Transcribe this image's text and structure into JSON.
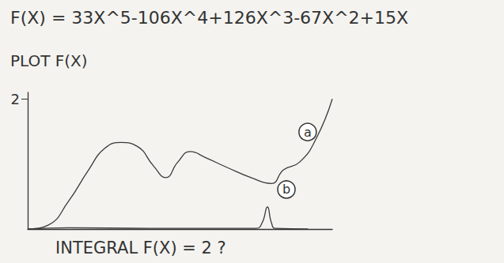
{
  "chart_data": {
    "type": "line",
    "title": "F(X) = 33X^5-106X^4+126X^3-67X^2+15X",
    "subtitle": "PLOT F(X)",
    "annotations": [
      "INTEGRAL F(X) = 2 ?"
    ],
    "xlim": [
      0,
      1
    ],
    "xticks": [],
    "ylim": [
      0,
      2.1
    ],
    "yticks": [
      2
    ],
    "tick_labels": "y",
    "grid": false,
    "series": [
      {
        "name": "a",
        "color": "#3a3a3a",
        "x": [
          0,
          0.067,
          0.133,
          0.2,
          0.253,
          0.307,
          0.36,
          0.413,
          0.453,
          0.493,
          0.533,
          0.587,
          0.653,
          0.733,
          0.8,
          0.84,
          0.893,
          0.947,
          1.0
        ],
        "values": [
          0,
          0.06,
          0.42,
          0.91,
          1.24,
          1.33,
          1.27,
          0.97,
          0.79,
          1.03,
          1.19,
          1.09,
          0.95,
          0.79,
          0.7,
          0.91,
          1.03,
          1.39,
          2.0
        ]
      },
      {
        "name": "b",
        "color": "#3a3a3a",
        "x": [
          0,
          0.133,
          0.4,
          0.75,
          0.77,
          0.787,
          0.8,
          0.813,
          0.92
        ],
        "values": [
          0,
          0.02,
          0.01,
          0.01,
          0.1,
          0.34,
          0.1,
          0.01,
          0
        ]
      }
    ]
  }
}
